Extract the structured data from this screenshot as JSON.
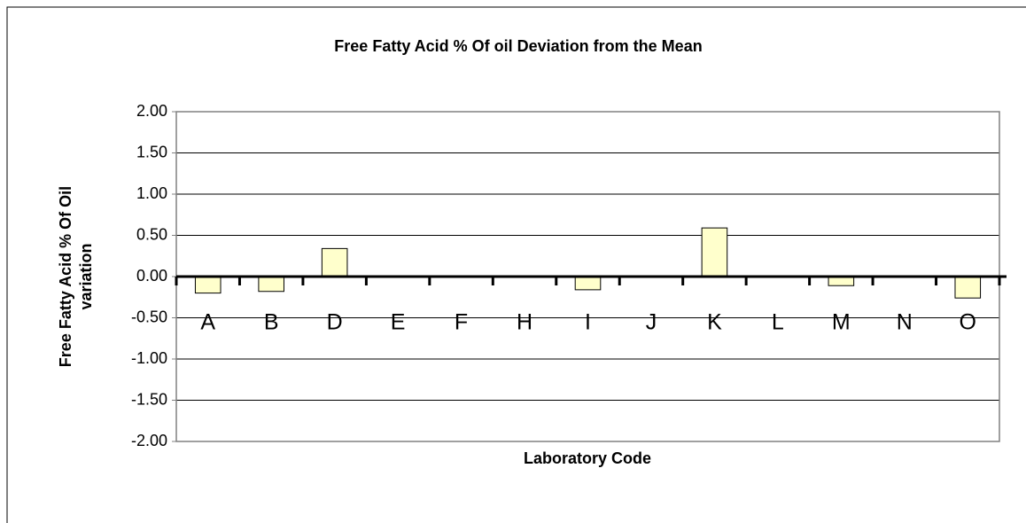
{
  "chart_data": {
    "type": "bar",
    "title": "Free Fatty Acid % Of oil Deviation from the Mean",
    "xlabel": "Laboratory Code",
    "ylabel": [
      "Free Fatty Acid % Of Oil",
      "variation"
    ],
    "categories": [
      "A",
      "B",
      "D",
      "E",
      "F",
      "H",
      "I",
      "J",
      "K",
      "L",
      "M",
      "N",
      "O"
    ],
    "values": [
      -0.2,
      -0.18,
      0.34,
      0,
      0,
      0,
      -0.16,
      0,
      0.59,
      0,
      -0.11,
      0,
      -0.26
    ],
    "color": "#ffffcc",
    "ylim": [
      -2,
      2
    ],
    "yticks": [
      {
        "value": 2,
        "label": "2.00"
      },
      {
        "value": 1.5,
        "label": "1.50"
      },
      {
        "value": 1,
        "label": "1.00"
      },
      {
        "value": 0.5,
        "label": "0.50"
      },
      {
        "value": 0,
        "label": "0.00"
      },
      {
        "value": -0.5,
        "label": "-0.50"
      },
      {
        "value": -1,
        "label": "-1.00"
      },
      {
        "value": -1.5,
        "label": "-1.50"
      },
      {
        "value": -2,
        "label": "-2.00"
      }
    ],
    "grid": true
  }
}
